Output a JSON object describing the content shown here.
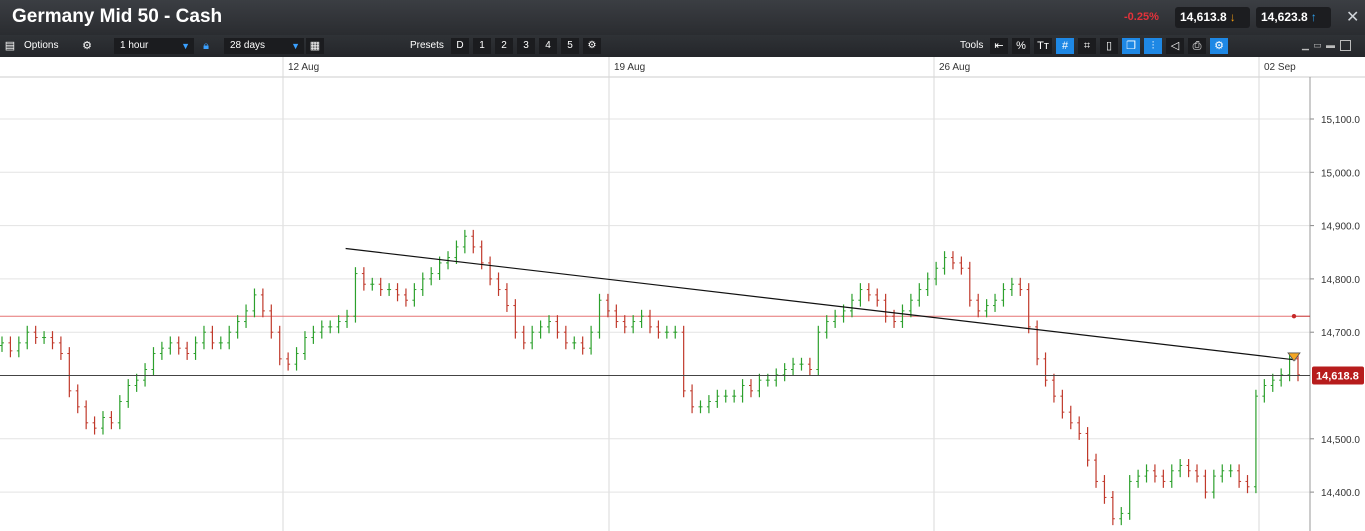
{
  "window": {
    "title": "Germany Mid 50 - Cash",
    "change": "-0.25%",
    "sell_price": "14,613.8",
    "buy_price": "14,623.8",
    "close_icon": "close-icon"
  },
  "toolbar": {
    "options_label": "Options",
    "interval": "1 hour",
    "range": "28 days",
    "presets_label": "Presets",
    "presets": [
      "D",
      "1",
      "2",
      "3",
      "4",
      "5"
    ],
    "tools_label": "Tools",
    "percent_label": "%",
    "text_label": "Tт"
  },
  "colors": {
    "up": "#2ca02c",
    "down": "#c0392b",
    "last_price_bg": "#b71c1c",
    "accent": "#1e88e5"
  },
  "chart_data": {
    "type": "candlestick-ohlc",
    "x_labels": [
      "12 Aug",
      "19 Aug",
      "26 Aug",
      "02 Sep"
    ],
    "y_ticks": [
      "15,100.0",
      "15,000.0",
      "14,900.0",
      "14,800.0",
      "14,700.0",
      "14,500.0",
      "14,400.0"
    ],
    "ylim": [
      14330,
      15200
    ],
    "last_price": 14618.8,
    "last_price_label": "14,618.8",
    "horizontal_line": 14730,
    "trendline": {
      "start": [
        0.2532,
        14857
      ],
      "end": [
        0.9491,
        14648
      ]
    },
    "close_series": [
      14680,
      14665,
      14680,
      14700,
      14690,
      14690,
      14680,
      14660,
      14590,
      14560,
      14530,
      14520,
      14540,
      14530,
      14570,
      14600,
      14610,
      14630,
      14660,
      14670,
      14680,
      14670,
      14660,
      14680,
      14700,
      14680,
      14680,
      14700,
      14720,
      14740,
      14770,
      14740,
      14700,
      14650,
      14640,
      14660,
      14690,
      14700,
      14710,
      14710,
      14720,
      14730,
      14810,
      14790,
      14790,
      14780,
      14780,
      14770,
      14760,
      14780,
      14800,
      14810,
      14830,
      14840,
      14860,
      14880,
      14860,
      14830,
      14800,
      14780,
      14750,
      14700,
      14680,
      14700,
      14710,
      14720,
      14700,
      14680,
      14680,
      14670,
      14700,
      14760,
      14740,
      14720,
      14710,
      14720,
      14730,
      14710,
      14700,
      14700,
      14700,
      14590,
      14560,
      14560,
      14570,
      14580,
      14580,
      14580,
      14600,
      14590,
      14610,
      14610,
      14620,
      14630,
      14640,
      14640,
      14630,
      14700,
      14720,
      14730,
      14740,
      14760,
      14780,
      14770,
      14760,
      14730,
      14720,
      14740,
      14760,
      14780,
      14800,
      14820,
      14840,
      14830,
      14820,
      14760,
      14740,
      14750,
      14760,
      14780,
      14790,
      14780,
      14710,
      14650,
      14610,
      14580,
      14550,
      14530,
      14510,
      14460,
      14420,
      14390,
      14350,
      14360,
      14420,
      14430,
      14440,
      14430,
      14420,
      14440,
      14450,
      14440,
      14430,
      14400,
      14430,
      14440,
      14440,
      14420,
      14410,
      14580,
      14600,
      14610,
      14620,
      14650,
      14620
    ]
  }
}
